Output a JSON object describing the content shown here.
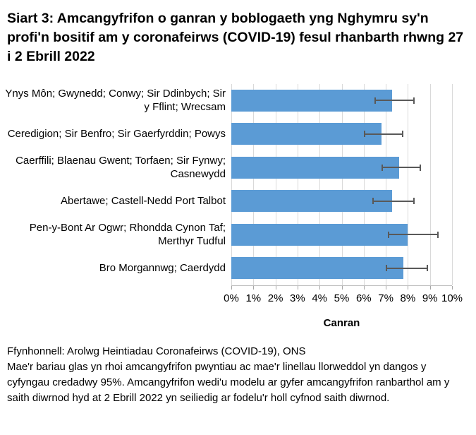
{
  "title": "Siart 3: Amcangyfrifon o ganran y boblogaeth yng Nghymru sy'n profi'n bositif am y coronafeirws (COVID-19) fesul rhanbarth rhwng 27 i 2 Ebrill 2022",
  "chart_data": {
    "type": "bar",
    "orientation": "horizontal",
    "categories": [
      "Ynys Môn; Gwynedd; Conwy; Sir Ddinbych; Sir y Fflint; Wrecsam",
      "Ceredigion; Sir Benfro; Sir Gaerfyrddin; Powys",
      "Caerffili; Blaenau Gwent; Torfaen; Sir Fynwy; Casnewydd",
      "Abertawe; Castell-Nedd Port Talbot",
      "Pen-y-Bont Ar Ogwr; Rhondda Cynon Taf; Merthyr Tudful",
      "Bro Morgannwg; Caerdydd"
    ],
    "values": [
      7.3,
      6.8,
      7.6,
      7.3,
      8.0,
      7.8
    ],
    "ci_lower": [
      6.5,
      6.0,
      6.8,
      6.4,
      7.1,
      7.0
    ],
    "ci_upper": [
      8.3,
      7.8,
      8.6,
      8.3,
      9.4,
      8.9
    ],
    "ci_level": "95%",
    "xlabel": "Canran",
    "xlim": [
      0,
      10
    ],
    "x_ticks": [
      "0%",
      "1%",
      "2%",
      "3%",
      "4%",
      "5%",
      "6%",
      "7%",
      "8%",
      "9%",
      "10%"
    ],
    "grid": true,
    "legend": "none",
    "bar_color": "#5b9bd5",
    "error_bar_color": "#595959",
    "gridline_color": "#d9d9d9",
    "axis_line_color": "#bfbfbf"
  },
  "footer": {
    "source": "Ffynhonnell: Arolwg Heintiadau Coronafeirws (COVID-19), ONS",
    "note": "Mae'r bariau glas yn rhoi amcangyfrifon pwyntiau ac mae'r linellau llorweddol yn dangos y cyfyngau credadwy 95%. Amcangyfrifon wedi'u modelu ar gyfer amcangyfrifon ranbarthol am y saith diwrnod hyd at 2 Ebrill 2022 yn seiliedig ar fodelu'r holl cyfnod saith diwrnod."
  }
}
